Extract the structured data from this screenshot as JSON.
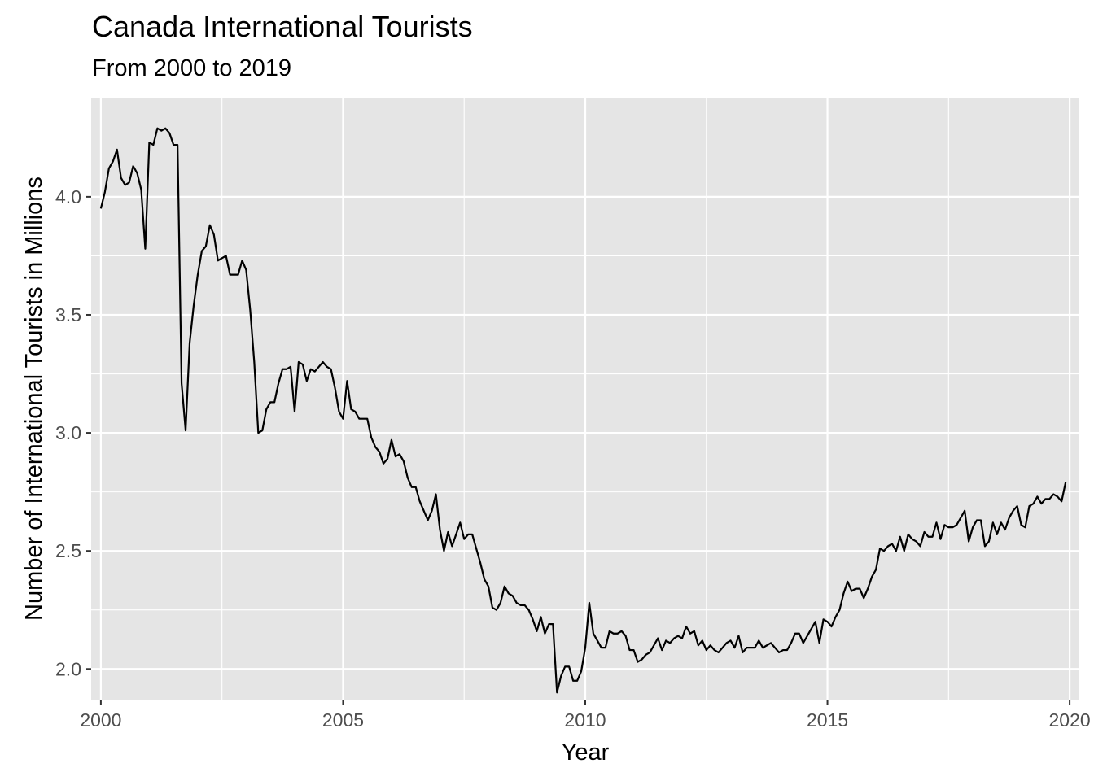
{
  "chart_data": {
    "type": "line",
    "title": "Canada International Tourists",
    "subtitle": "From 2000 to 2019",
    "xlabel": "Year",
    "ylabel": "Number of International Tourists in Millions",
    "xlim": [
      1999.8,
      2020.2
    ],
    "ylim": [
      1.87,
      4.42
    ],
    "x_ticks": [
      2000,
      2005,
      2010,
      2015,
      2020
    ],
    "x_tick_labels": [
      "2000",
      "2005",
      "2010",
      "2015",
      "2020"
    ],
    "y_ticks": [
      2.0,
      2.5,
      3.0,
      3.5,
      4.0
    ],
    "y_tick_labels": [
      "2.0",
      "2.5",
      "3.0",
      "3.5",
      "4.0"
    ],
    "grid": true,
    "legend": "none",
    "colors": {
      "panel": "#e5e5e5",
      "grid": "#ffffff",
      "line": "#000000",
      "tick_text": "#4d4d4d"
    },
    "series": [
      {
        "x_start": 2000,
        "step": 0.08333333,
        "values": [
          3.95,
          4.02,
          4.12,
          4.15,
          4.2,
          4.08,
          4.05,
          4.06,
          4.13,
          4.1,
          4.03,
          3.78,
          4.23,
          4.22,
          4.29,
          4.28,
          4.29,
          4.27,
          4.22,
          4.22,
          3.21,
          3.01,
          3.38,
          3.54,
          3.67,
          3.77,
          3.79,
          3.88,
          3.84,
          3.73,
          3.74,
          3.75,
          3.67,
          3.67,
          3.67,
          3.73,
          3.69,
          3.52,
          3.3,
          3.0,
          3.01,
          3.1,
          3.13,
          3.13,
          3.21,
          3.27,
          3.27,
          3.28,
          3.09,
          3.3,
          3.29,
          3.22,
          3.27,
          3.26,
          3.28,
          3.3,
          3.28,
          3.27,
          3.19,
          3.09,
          3.06,
          3.22,
          3.1,
          3.09,
          3.06,
          3.06,
          3.06,
          2.98,
          2.94,
          2.92,
          2.87,
          2.89,
          2.97,
          2.9,
          2.91,
          2.88,
          2.81,
          2.77,
          2.77,
          2.71,
          2.67,
          2.63,
          2.67,
          2.74,
          2.59,
          2.5,
          2.58,
          2.52,
          2.57,
          2.62,
          2.55,
          2.57,
          2.57,
          2.51,
          2.45,
          2.38,
          2.35,
          2.26,
          2.25,
          2.28,
          2.35,
          2.32,
          2.31,
          2.28,
          2.27,
          2.27,
          2.25,
          2.21,
          2.16,
          2.22,
          2.15,
          2.19,
          2.19,
          1.9,
          1.97,
          2.01,
          2.01,
          1.95,
          1.95,
          1.99,
          2.09,
          2.28,
          2.15,
          2.12,
          2.09,
          2.09,
          2.16,
          2.15,
          2.15,
          2.16,
          2.14,
          2.08,
          2.08,
          2.03,
          2.04,
          2.06,
          2.07,
          2.1,
          2.13,
          2.08,
          2.12,
          2.11,
          2.13,
          2.14,
          2.13,
          2.18,
          2.15,
          2.16,
          2.1,
          2.12,
          2.08,
          2.1,
          2.08,
          2.07,
          2.09,
          2.11,
          2.12,
          2.09,
          2.14,
          2.07,
          2.09,
          2.09,
          2.09,
          2.12,
          2.09,
          2.1,
          2.11,
          2.09,
          2.07,
          2.08,
          2.08,
          2.11,
          2.15,
          2.15,
          2.11,
          2.14,
          2.17,
          2.2,
          2.11,
          2.21,
          2.2,
          2.18,
          2.22,
          2.25,
          2.32,
          2.37,
          2.33,
          2.34,
          2.34,
          2.3,
          2.34,
          2.39,
          2.42,
          2.51,
          2.5,
          2.52,
          2.53,
          2.5,
          2.56,
          2.5,
          2.57,
          2.55,
          2.54,
          2.52,
          2.58,
          2.56,
          2.56,
          2.62,
          2.55,
          2.61,
          2.6,
          2.6,
          2.61,
          2.64,
          2.67,
          2.54,
          2.6,
          2.63,
          2.63,
          2.52,
          2.54,
          2.62,
          2.57,
          2.62,
          2.59,
          2.64,
          2.67,
          2.69,
          2.61,
          2.6,
          2.69,
          2.7,
          2.73,
          2.7,
          2.72,
          2.72,
          2.74,
          2.73,
          2.71,
          2.79
        ]
      }
    ]
  }
}
